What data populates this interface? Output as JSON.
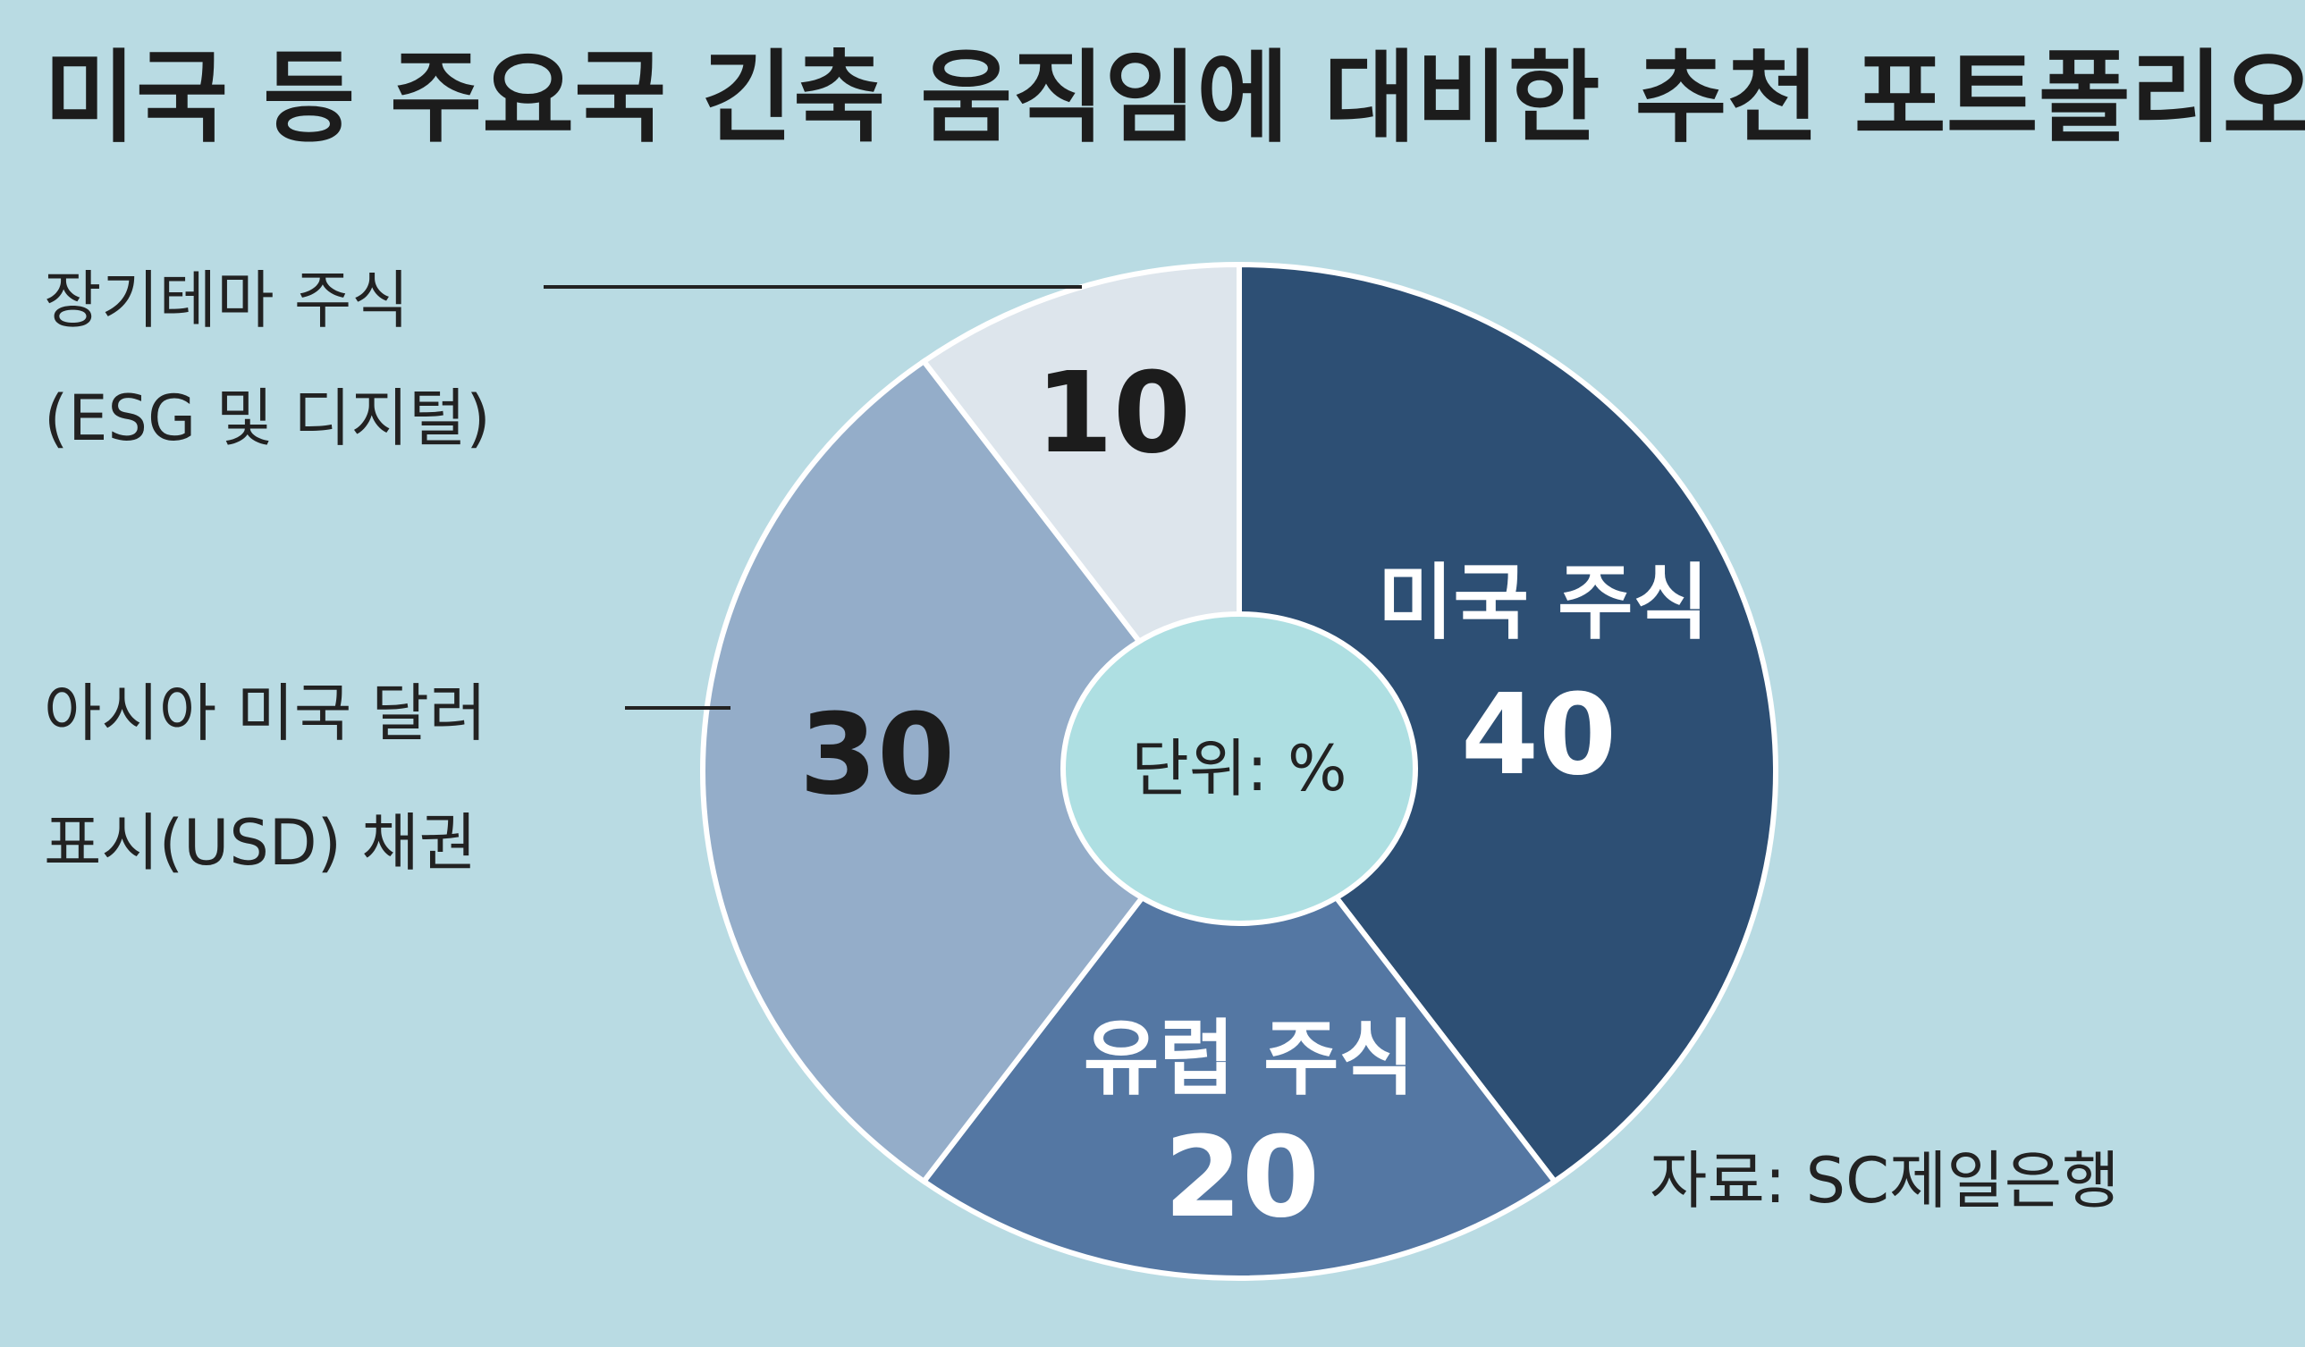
{
  "title": "미국 등 주요국 긴축 움직임에 대비한 추천 포트폴리오",
  "unit_label": "단위: %",
  "source": "자료: SC제일은행",
  "colors": {
    "background": "#b9dbe3",
    "center": "#aedfe2",
    "slices": [
      "#2d4f74",
      "#5477a3",
      "#94adc9",
      "#dde5ec"
    ]
  },
  "chart_data": {
    "type": "pie",
    "title": "미국 등 주요국 긴축 움직임에 대비한 추천 포트폴리오",
    "unit": "%",
    "donut": true,
    "start": "12 o'clock",
    "direction": "clockwise",
    "slices": [
      {
        "label": "미국 주식",
        "value": 40,
        "value_text": "40"
      },
      {
        "label": "유럽 주식",
        "value": 20,
        "value_text": "20"
      },
      {
        "label_lines": [
          "아시아 미국 달러",
          "표시(USD) 채권"
        ],
        "value": 30,
        "value_text": "30"
      },
      {
        "label_lines": [
          "장기테마 주식",
          "(ESG 및 디지털)"
        ],
        "value": 10,
        "value_text": "10"
      }
    ]
  }
}
